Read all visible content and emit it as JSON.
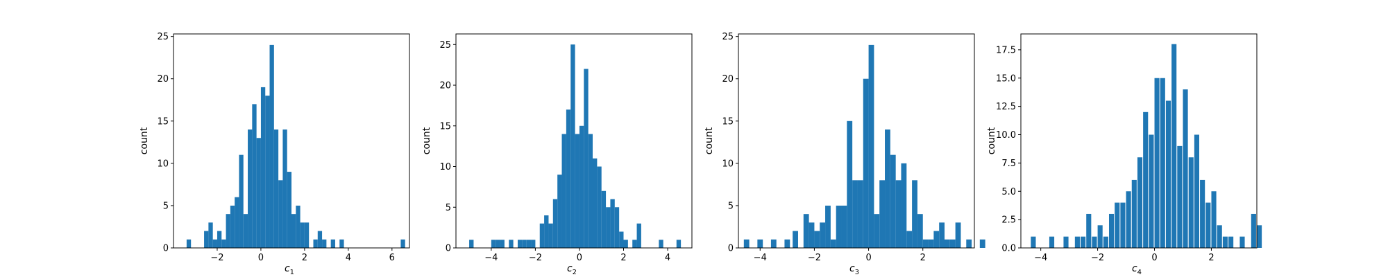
{
  "colors": {
    "bar": "#1f77b4",
    "axis": "#000000",
    "background": "#ffffff"
  },
  "chart_data": [
    {
      "type": "bar",
      "chart_kind": "histogram",
      "xlabel_base": "c",
      "xlabel_sub": "1",
      "ylabel": "count",
      "xlim": [
        -4.0,
        6.8
      ],
      "ylim": [
        0,
        25.3
      ],
      "xticks": [
        -2,
        0,
        2,
        4,
        6
      ],
      "yticks": [
        0,
        5,
        10,
        15,
        20,
        25
      ],
      "ytick_labels": [
        "0",
        "5",
        "10",
        "15",
        "20",
        "25"
      ],
      "bin_width": 0.2,
      "bins": [
        [
          -3.4,
          1
        ],
        [
          -2.6,
          2
        ],
        [
          -2.4,
          3
        ],
        [
          -2.2,
          1
        ],
        [
          -2.0,
          2
        ],
        [
          -1.8,
          1
        ],
        [
          -1.6,
          4
        ],
        [
          -1.4,
          5
        ],
        [
          -1.2,
          6
        ],
        [
          -1.0,
          11
        ],
        [
          -0.8,
          4
        ],
        [
          -0.6,
          14
        ],
        [
          -0.4,
          17
        ],
        [
          -0.2,
          13
        ],
        [
          0.0,
          19
        ],
        [
          0.2,
          18
        ],
        [
          0.4,
          24
        ],
        [
          0.6,
          14
        ],
        [
          0.8,
          8
        ],
        [
          1.0,
          14
        ],
        [
          1.2,
          9
        ],
        [
          1.4,
          4
        ],
        [
          1.6,
          5
        ],
        [
          1.8,
          3
        ],
        [
          2.0,
          3
        ],
        [
          2.4,
          1
        ],
        [
          2.6,
          2
        ],
        [
          2.8,
          1
        ],
        [
          3.2,
          1
        ],
        [
          3.6,
          1
        ],
        [
          6.4,
          1
        ]
      ]
    },
    {
      "type": "bar",
      "chart_kind": "histogram",
      "xlabel_base": "c",
      "xlabel_sub": "2",
      "ylabel": "count",
      "xlim": [
        -5.6,
        5.1
      ],
      "ylim": [
        0,
        26.3
      ],
      "xticks": [
        -4,
        -2,
        0,
        2,
        4
      ],
      "yticks": [
        0,
        5,
        10,
        15,
        20,
        25
      ],
      "ytick_labels": [
        "0",
        "5",
        "10",
        "15",
        "20",
        "25"
      ],
      "bin_width": 0.2,
      "bins": [
        [
          -5.0,
          1
        ],
        [
          -4.0,
          1
        ],
        [
          -3.8,
          1
        ],
        [
          -3.6,
          1
        ],
        [
          -3.2,
          1
        ],
        [
          -2.8,
          1
        ],
        [
          -2.6,
          1
        ],
        [
          -2.4,
          1
        ],
        [
          -2.2,
          1
        ],
        [
          -1.8,
          3
        ],
        [
          -1.6,
          4
        ],
        [
          -1.4,
          3
        ],
        [
          -1.2,
          6
        ],
        [
          -1.0,
          9
        ],
        [
          -0.8,
          14
        ],
        [
          -0.6,
          17
        ],
        [
          -0.4,
          25
        ],
        [
          -0.2,
          14
        ],
        [
          0.0,
          15
        ],
        [
          0.2,
          22
        ],
        [
          0.4,
          14
        ],
        [
          0.6,
          11
        ],
        [
          0.8,
          10
        ],
        [
          1.0,
          7
        ],
        [
          1.2,
          5
        ],
        [
          1.4,
          6
        ],
        [
          1.6,
          5
        ],
        [
          1.8,
          2
        ],
        [
          2.0,
          1
        ],
        [
          2.4,
          1
        ],
        [
          2.6,
          3
        ],
        [
          3.6,
          1
        ],
        [
          4.4,
          1
        ]
      ]
    },
    {
      "type": "bar",
      "chart_kind": "histogram",
      "xlabel_base": "c",
      "xlabel_sub": "3",
      "ylabel": "count",
      "xlim": [
        -4.8,
        3.9
      ],
      "ylim": [
        0,
        25.3
      ],
      "xticks": [
        -4,
        -2,
        0,
        2
      ],
      "yticks": [
        0,
        5,
        10,
        15,
        20,
        25
      ],
      "ytick_labels": [
        "0",
        "5",
        "10",
        "15",
        "20",
        "25"
      ],
      "bin_width": 0.2,
      "bins": [
        [
          -4.6,
          1
        ],
        [
          -4.1,
          1
        ],
        [
          -3.6,
          1
        ],
        [
          -3.1,
          1
        ],
        [
          -2.8,
          2
        ],
        [
          -2.4,
          4
        ],
        [
          -2.2,
          3
        ],
        [
          -2.0,
          2
        ],
        [
          -1.8,
          3
        ],
        [
          -1.6,
          5
        ],
        [
          -1.4,
          1
        ],
        [
          -1.2,
          5
        ],
        [
          -1.0,
          5
        ],
        [
          -0.8,
          15
        ],
        [
          -0.6,
          8
        ],
        [
          -0.4,
          8
        ],
        [
          -0.2,
          20
        ],
        [
          0.0,
          24
        ],
        [
          0.2,
          4
        ],
        [
          0.4,
          8
        ],
        [
          0.6,
          14
        ],
        [
          0.8,
          11
        ],
        [
          1.0,
          8
        ],
        [
          1.2,
          10
        ],
        [
          1.4,
          2
        ],
        [
          1.6,
          8
        ],
        [
          1.8,
          4
        ],
        [
          2.0,
          1
        ],
        [
          2.2,
          1
        ],
        [
          2.4,
          2
        ],
        [
          2.6,
          3
        ],
        [
          2.8,
          1
        ],
        [
          3.0,
          1
        ],
        [
          3.2,
          3
        ],
        [
          3.6,
          1
        ],
        [
          4.1,
          1
        ]
      ]
    },
    {
      "type": "bar",
      "chart_kind": "histogram",
      "xlabel_base": "c",
      "xlabel_sub": "4",
      "ylabel": "count",
      "xlim": [
        -4.7,
        3.6
      ],
      "ylim": [
        0,
        18.9
      ],
      "xticks": [
        -4,
        -2,
        0,
        2
      ],
      "yticks": [
        0,
        2.5,
        5.0,
        7.5,
        10.0,
        12.5,
        15.0,
        17.5
      ],
      "ytick_labels": [
        "0.0",
        "2.5",
        "5.0",
        "7.5",
        "10.0",
        "12.5",
        "15.0",
        "17.5"
      ],
      "bin_width": 0.174,
      "bins": [
        [
          -4.35,
          1
        ],
        [
          -3.7,
          1
        ],
        [
          -3.2,
          1
        ],
        [
          -2.8,
          1
        ],
        [
          -2.6,
          1
        ],
        [
          -2.4,
          3
        ],
        [
          -2.2,
          1
        ],
        [
          -2.0,
          2
        ],
        [
          -1.8,
          1
        ],
        [
          -1.6,
          3
        ],
        [
          -1.4,
          4
        ],
        [
          -1.2,
          4
        ],
        [
          -1.0,
          5
        ],
        [
          -0.8,
          6
        ],
        [
          -0.6,
          8
        ],
        [
          -0.4,
          12
        ],
        [
          -0.2,
          10
        ],
        [
          0.0,
          15
        ],
        [
          0.2,
          15
        ],
        [
          0.4,
          13
        ],
        [
          0.6,
          18
        ],
        [
          0.8,
          9
        ],
        [
          1.0,
          14
        ],
        [
          1.2,
          8
        ],
        [
          1.4,
          10
        ],
        [
          1.6,
          6
        ],
        [
          1.8,
          4
        ],
        [
          2.0,
          5
        ],
        [
          2.2,
          2
        ],
        [
          2.4,
          1
        ],
        [
          2.6,
          1
        ],
        [
          3.0,
          1
        ],
        [
          3.4,
          3
        ],
        [
          3.6,
          2
        ]
      ]
    }
  ]
}
